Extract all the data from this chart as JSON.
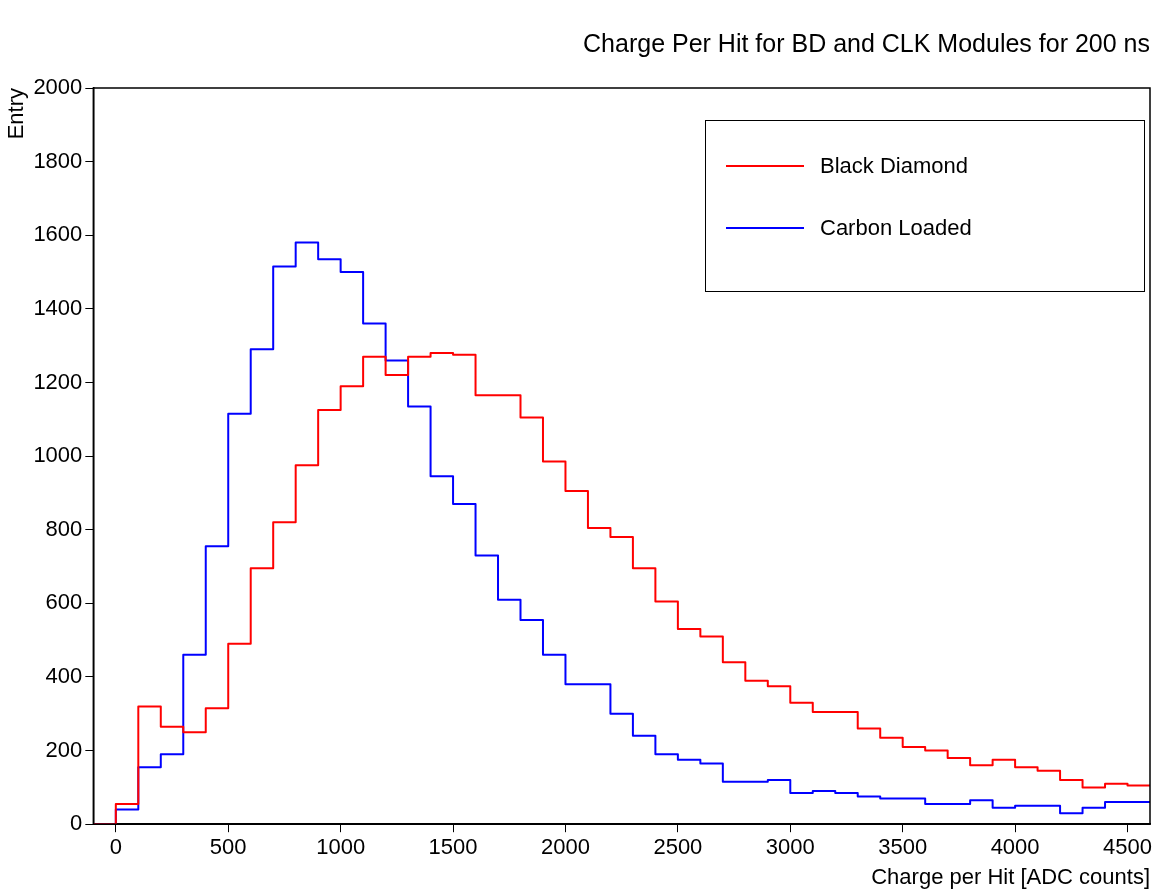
{
  "chart_data": {
    "type": "histogram",
    "title": "Charge Per Hit for BD and CLK Modules for 200 ns",
    "xlabel": "Charge per Hit [ADC counts]",
    "ylabel": "Entry",
    "bins": [
      -100,
      0,
      100,
      200,
      300,
      400,
      500,
      600,
      700,
      800,
      900,
      1000,
      1100,
      1200,
      1300,
      1400,
      1500,
      1600,
      1700,
      1800,
      1900,
      2000,
      2100,
      2200,
      2300,
      2400,
      2500,
      2600,
      2700,
      2800,
      2900,
      3000,
      3100,
      3200,
      3300,
      3400,
      3500,
      3600,
      3700,
      3800,
      3900,
      4000,
      4100,
      4200,
      4300,
      4400,
      4500,
      4600
    ],
    "series": [
      {
        "name": "Black Diamond",
        "color": "#ff0000",
        "values": [
          0,
          55,
          320,
          265,
          250,
          315,
          490,
          695,
          820,
          975,
          1125,
          1190,
          1270,
          1220,
          1270,
          1280,
          1275,
          1165,
          1165,
          1105,
          985,
          905,
          805,
          780,
          695,
          605,
          530,
          510,
          440,
          390,
          375,
          330,
          305,
          305,
          260,
          235,
          210,
          200,
          180,
          160,
          175,
          155,
          145,
          120,
          100,
          110,
          105
        ]
      },
      {
        "name": "Carbon Loaded",
        "color": "#0000ff",
        "values": [
          0,
          40,
          155,
          190,
          460,
          755,
          1115,
          1290,
          1515,
          1580,
          1535,
          1500,
          1360,
          1260,
          1135,
          945,
          870,
          730,
          610,
          555,
          460,
          380,
          380,
          300,
          240,
          190,
          175,
          165,
          115,
          115,
          120,
          85,
          90,
          85,
          75,
          70,
          70,
          55,
          55,
          65,
          45,
          50,
          50,
          30,
          45,
          60,
          60
        ]
      }
    ],
    "xlim": [
      -100,
      4600
    ],
    "xticks": [
      0,
      500,
      1000,
      1500,
      2000,
      2500,
      3000,
      3500,
      4000,
      4500
    ],
    "ylim": [
      0,
      2000
    ],
    "yticks": [
      0,
      200,
      400,
      600,
      800,
      1000,
      1200,
      1400,
      1600,
      1800,
      2000
    ],
    "grid": false,
    "legend": "top right",
    "marker": "none",
    "line_style": "solid"
  }
}
